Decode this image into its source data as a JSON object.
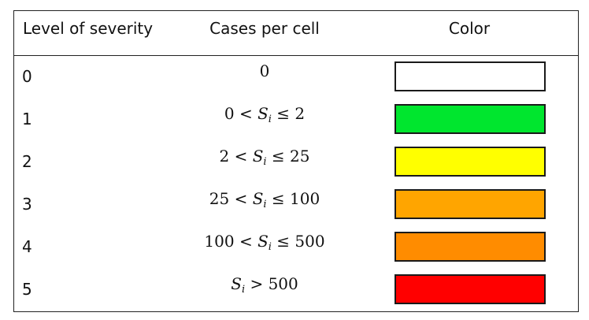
{
  "headers": {
    "level": "Level of severity",
    "cases": "Cases per cell",
    "color": "Color"
  },
  "rows": [
    {
      "level": "0",
      "cases_plain": "0",
      "color": "#ffffff"
    },
    {
      "level": "1",
      "cases_left": "0 < ",
      "variable": "S",
      "subscript": "i",
      "cases_right": " ≤ 2",
      "color": "#00e62e"
    },
    {
      "level": "2",
      "cases_left": "2 < ",
      "variable": "S",
      "subscript": "i",
      "cases_right": " ≤ 25",
      "color": "#ffff00"
    },
    {
      "level": "3",
      "cases_left": "25 < ",
      "variable": "S",
      "subscript": "i",
      "cases_right": " ≤ 100",
      "color": "#ffa500"
    },
    {
      "level": "4",
      "cases_left": "100 < ",
      "variable": "S",
      "subscript": "i",
      "cases_right": " ≤ 500",
      "color": "#ff8c00"
    },
    {
      "level": "5",
      "cases_left": "",
      "variable": "S",
      "subscript": "i",
      "cases_right": " > 500",
      "color": "#ff0000"
    }
  ]
}
